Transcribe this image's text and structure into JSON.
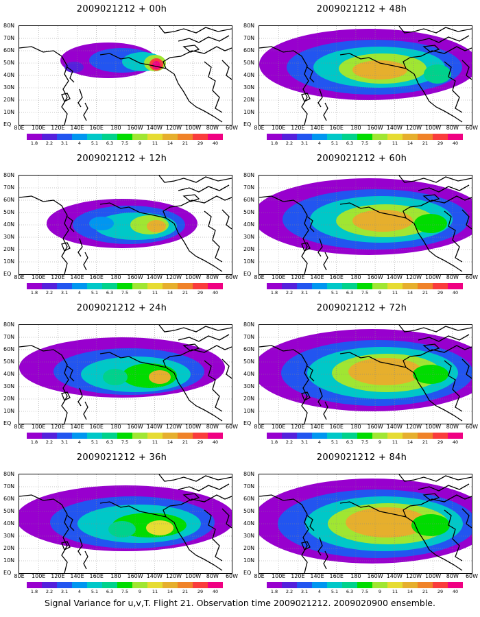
{
  "caption": "Signal Variance for u,v,T. Flight 21. Observation time 2009021212. 2009020900 ensemble.",
  "lat_labels": [
    "80N",
    "70N",
    "60N",
    "50N",
    "40N",
    "30N",
    "20N",
    "10N",
    "EQ"
  ],
  "lon_labels": [
    "80E",
    "100E",
    "120E",
    "140E",
    "160E",
    "180",
    "160W",
    "140W",
    "120W",
    "100W",
    "80W",
    "60W"
  ],
  "colorbar": {
    "labels": [
      "1.8",
      "2.2",
      "3.1",
      "4",
      "5.1",
      "6.3",
      "7.5",
      "9",
      "11",
      "14",
      "21",
      "29",
      "40"
    ],
    "colors": [
      "#9800ce",
      "#5520dc",
      "#2255f0",
      "#0096f0",
      "#00c8c8",
      "#00d28c",
      "#00dc00",
      "#a0e632",
      "#e6dc32",
      "#e6af2d",
      "#f08228",
      "#fa3c3c",
      "#f00082"
    ]
  },
  "panels": [
    {
      "title": "2009021212 + 00h",
      "fcst_hour": 0
    },
    {
      "title": "2009021212 + 48h",
      "fcst_hour": 48
    },
    {
      "title": "2009021212 + 12h",
      "fcst_hour": 12
    },
    {
      "title": "2009021212 + 60h",
      "fcst_hour": 60
    },
    {
      "title": "2009021212 + 24h",
      "fcst_hour": 24
    },
    {
      "title": "2009021212 + 72h",
      "fcst_hour": 72
    },
    {
      "title": "2009021212 + 36h",
      "fcst_hour": 36
    },
    {
      "title": "2009021212 + 84h",
      "fcst_hour": 84
    }
  ]
}
